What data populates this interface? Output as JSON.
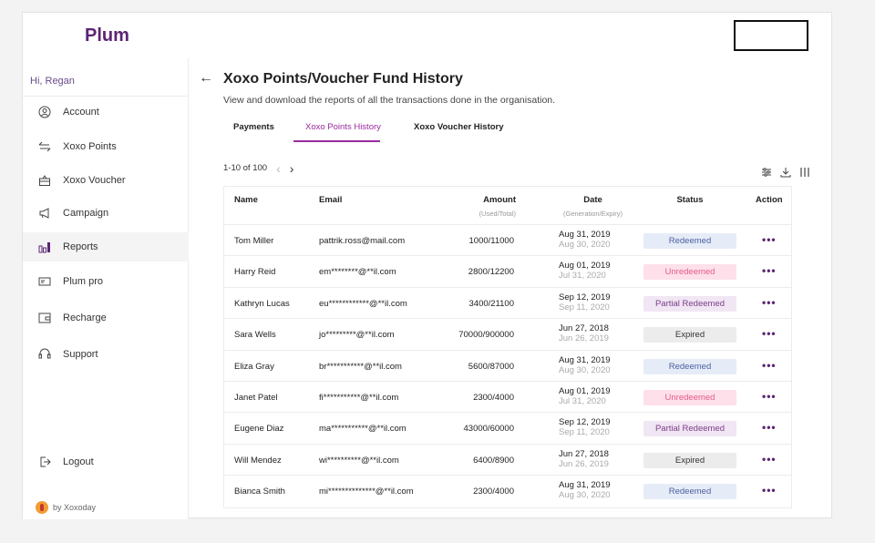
{
  "app": {
    "logo": "Plum"
  },
  "sidebar": {
    "greeting": "Hi, Regan",
    "items": [
      {
        "label": "Account",
        "icon": "account-icon"
      },
      {
        "label": "Xoxo Points",
        "icon": "exchange-icon"
      },
      {
        "label": "Xoxo Voucher",
        "icon": "gift-icon"
      },
      {
        "label": "Campaign",
        "icon": "megaphone-icon"
      },
      {
        "label": "Reports",
        "icon": "bar-chart-icon",
        "active": true
      },
      {
        "label": "Plum pro",
        "icon": "card-icon"
      },
      {
        "label": "Recharge",
        "icon": "recharge-icon"
      },
      {
        "label": "Support",
        "icon": "headset-icon"
      }
    ],
    "logout": "Logout",
    "by": "by Xoxoday"
  },
  "page": {
    "title": "Xoxo Points/Voucher Fund History",
    "subtitle": "View and download the reports of all the transactions done in the organisation.",
    "tabs": [
      "Payments",
      "Xoxo Points History",
      "Xoxo Voucher History"
    ],
    "active_tab": 1,
    "pager": "1-10 of 100"
  },
  "table": {
    "headers": {
      "name": "Name",
      "email": "Email",
      "amount": "Amount",
      "amount_sub": "(Used/Total)",
      "date": "Date",
      "date_sub": "(Generation/Expiry)",
      "status": "Status",
      "action": "Action"
    },
    "rows": [
      {
        "name": "Tom Miller",
        "email": "pattrik.ross@mail.com",
        "amount": "1000/11000",
        "date1": "Aug 31, 2019",
        "date2": "Aug 30, 2020",
        "status": "Redeemed"
      },
      {
        "name": "Harry Reid",
        "email": "em********@**il.com",
        "amount": "2800/12200",
        "date1": "Aug 01, 2019",
        "date2": "Jul 31, 2020",
        "status": "Unredeemed"
      },
      {
        "name": "Kathryn Lucas",
        "email": "eu************@**il.com",
        "amount": "3400/21100",
        "date1": "Sep 12, 2019",
        "date2": "Sep 11, 2020",
        "status": "Partial Redeemed"
      },
      {
        "name": "Sara Wells",
        "email": "jo*********@**il.com",
        "amount": "70000/900000",
        "date1": "Jun 27, 2018",
        "date2": "Jun 26, 2019",
        "status": "Expired"
      },
      {
        "name": "Eliza Gray",
        "email": "br***********@**il.com",
        "amount": "5600/87000",
        "date1": "Aug 31, 2019",
        "date2": "Aug 30, 2020",
        "status": "Redeemed"
      },
      {
        "name": "Janet Patel",
        "email": "fi***********@**il.com",
        "amount": "2300/4000",
        "date1": "Aug 01, 2019",
        "date2": "Jul 31, 2020",
        "status": "Unredeemed"
      },
      {
        "name": "Eugene Diaz",
        "email": "ma***********@**il.com",
        "amount": "43000/60000",
        "date1": "Sep 12, 2019",
        "date2": "Sep 11, 2020",
        "status": "Partial Redeemed"
      },
      {
        "name": "Will Mendez",
        "email": "wi**********@**il.com",
        "amount": "6400/8900",
        "date1": "Jun 27, 2018",
        "date2": "Jun 26, 2019",
        "status": "Expired"
      },
      {
        "name": "Bianca Smith",
        "email": "mi**************@**il.com",
        "amount": "2300/4000",
        "date1": "Aug 31, 2019",
        "date2": "Aug 30, 2020",
        "status": "Redeemed"
      }
    ],
    "action_glyph": "•••"
  },
  "colors": {
    "brand": "#5b2474",
    "accent": "#9b2a9e"
  }
}
